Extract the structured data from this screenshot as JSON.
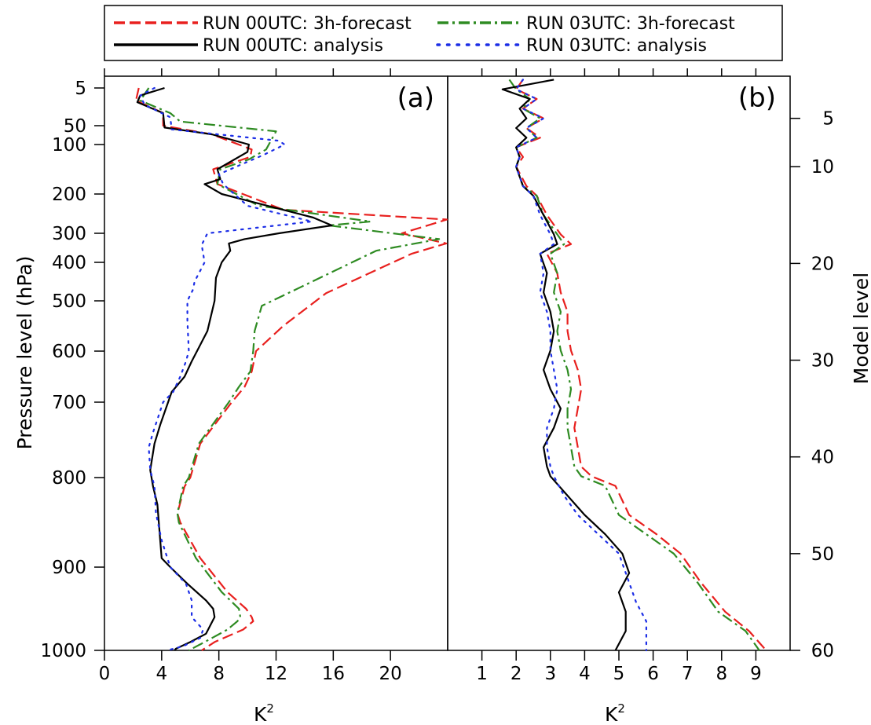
{
  "chart_data": [
    {
      "type": "line",
      "panel": "(a)",
      "xlabel": "K",
      "xlabel_superscript": "2",
      "ylabel": "Pressure level (hPa)",
      "xlim": [
        0,
        24
      ],
      "xticks": [
        0,
        4,
        8,
        12,
        16,
        20
      ],
      "yticks": [
        5,
        50,
        100,
        200,
        300,
        400,
        500,
        600,
        700,
        800,
        900,
        1000
      ],
      "y_axis": "pressure (hPa), increasing downward",
      "legend_position": "top, outside",
      "series": [
        {
          "name": "RUN 00UTC: 3h-forecast",
          "color": "#e8201e",
          "dash": "dashed",
          "x": [
            2.4,
            2.2,
            4.1,
            4.1,
            7.5,
            10.3,
            10.2,
            7.6,
            7.9,
            12.5,
            24.0,
            20.8,
            23.9,
            21.5,
            15.5,
            12.5,
            10.6,
            10.3,
            9.8,
            8.9,
            6.7,
            6.0,
            5.6,
            5.1,
            5.3,
            6.7,
            8.6,
            9.9,
            10.3,
            10.4,
            9.7,
            7.7,
            6.8
          ],
          "y": [
            5,
            20,
            35,
            50,
            73,
            110,
            125,
            150,
            180,
            240,
            265,
            300,
            335,
            370,
            480,
            550,
            600,
            640,
            670,
            700,
            755,
            800,
            810,
            840,
            850,
            890,
            930,
            950,
            960,
            965,
            975,
            990,
            1000
          ]
        },
        {
          "name": "RUN 03UTC: 3h-forecast",
          "color": "#2e8b22",
          "dash": "dashdot",
          "x": [
            3.1,
            2.5,
            4.6,
            5.3,
            12.0,
            11.3,
            10.1,
            8.1,
            7.9,
            10.8,
            18.6,
            15.7,
            23.4,
            19.0,
            11.0,
            10.5,
            10.4,
            10.2,
            9.4,
            8.7,
            6.6,
            5.9,
            5.5,
            5.1,
            5.2,
            6.4,
            8.2,
            9.4,
            9.5,
            9.3,
            8.6,
            7.0,
            5.9
          ],
          "y": [
            5,
            20,
            35,
            45,
            65,
            110,
            130,
            150,
            180,
            230,
            270,
            280,
            320,
            360,
            510,
            560,
            600,
            640,
            670,
            700,
            755,
            800,
            810,
            840,
            850,
            890,
            930,
            950,
            960,
            965,
            975,
            990,
            1000
          ]
        },
        {
          "name": "RUN 00UTC: analysis",
          "color": "#000000",
          "dash": "solid",
          "x": [
            4.2,
            2.5,
            2.3,
            4.1,
            4.2,
            7.5,
            10.1,
            10.0,
            7.9,
            8.1,
            7.0,
            8.2,
            14.6,
            15.9,
            12.2,
            9.8,
            8.7,
            8.8,
            8.2,
            7.8,
            7.7,
            7.2,
            6.1,
            5.6,
            4.7,
            3.9,
            3.5,
            3.2,
            3.4,
            3.7,
            3.9,
            4.0,
            4.6,
            5.8,
            7.1,
            7.6,
            7.7,
            7.1,
            6.0,
            5.0,
            4.9
          ],
          "y": [
            5,
            14,
            22,
            35,
            55,
            73,
            100,
            115,
            150,
            170,
            180,
            200,
            260,
            280,
            300,
            320,
            335,
            360,
            400,
            440,
            500,
            560,
            620,
            650,
            680,
            730,
            755,
            790,
            810,
            830,
            870,
            890,
            900,
            920,
            940,
            950,
            960,
            980,
            990,
            998,
            1000
          ]
        },
        {
          "name": "RUN 03UTC: analysis",
          "color": "#1c2ee6",
          "dash": "dotted",
          "x": [
            3.5,
            2.5,
            2.8,
            4.6,
            4.7,
            12.2,
            12.6,
            11.2,
            8.0,
            8.3,
            10.0,
            14.5,
            7.2,
            6.8,
            7.0,
            6.3,
            6.2,
            5.8,
            5.8,
            5.9,
            5.7,
            5.3,
            4.8,
            4.1,
            3.4,
            3.1,
            3.2,
            3.5,
            3.6,
            4.0,
            4.6,
            5.7,
            6.1,
            6.1,
            6.9,
            6.7,
            5.5,
            4.4
          ],
          "y": [
            5,
            14,
            25,
            40,
            60,
            90,
            100,
            120,
            160,
            180,
            230,
            270,
            300,
            340,
            400,
            450,
            470,
            500,
            540,
            600,
            620,
            650,
            680,
            700,
            740,
            760,
            790,
            810,
            840,
            870,
            900,
            920,
            940,
            960,
            975,
            985,
            995,
            1000
          ]
        }
      ]
    },
    {
      "type": "line",
      "panel": "(b)",
      "xlabel": "K",
      "xlabel_superscript": "2",
      "ylabel": "Model level",
      "xlim": [
        0,
        10
      ],
      "xticks": [
        1,
        2,
        3,
        4,
        5,
        6,
        7,
        8,
        9
      ],
      "yticks": [
        5,
        10,
        20,
        30,
        40,
        50,
        60
      ],
      "y_axis": "model level 1 at top to 60 at bottom, right-hand labels",
      "series": [
        {
          "name": "RUN 00UTC: 3h-forecast",
          "color": "#e8201e",
          "dash": "dashed",
          "x": [
            2.2,
            2.0,
            2.6,
            2.2,
            2.8,
            2.3,
            2.7,
            2.0,
            2.2,
            2.0,
            2.3,
            2.6,
            2.9,
            3.3,
            3.6,
            2.9,
            3.2,
            3.3,
            3.5,
            3.5,
            3.6,
            3.8,
            3.9,
            3.8,
            3.7,
            3.8,
            3.9,
            4.2,
            4.9,
            5.3,
            6.1,
            6.8,
            7.4,
            8.1,
            8.8,
            9.3
          ],
          "y": [
            1,
            2,
            3,
            4,
            5,
            6,
            7,
            8,
            9,
            10,
            12,
            13,
            15,
            17,
            18,
            19,
            21,
            23,
            25,
            27,
            29,
            31,
            33,
            35,
            37,
            39,
            41,
            42,
            43,
            46,
            48,
            50,
            53,
            56,
            58,
            60
          ]
        },
        {
          "name": "RUN 03UTC: 3h-forecast",
          "color": "#2e8b22",
          "dash": "dashdot",
          "x": [
            1.8,
            2.0,
            2.4,
            2.2,
            2.7,
            2.3,
            2.6,
            2.0,
            2.1,
            2.0,
            2.2,
            2.6,
            2.8,
            3.2,
            3.4,
            3.0,
            3.2,
            3.1,
            3.3,
            3.2,
            3.3,
            3.5,
            3.6,
            3.5,
            3.5,
            3.6,
            3.7,
            3.9,
            4.6,
            5.0,
            5.8,
            6.6,
            7.3,
            7.9,
            8.7,
            9.1
          ],
          "y": [
            1,
            2,
            3,
            4,
            5,
            6,
            7,
            8,
            9,
            10,
            12,
            13,
            15,
            17,
            18,
            19,
            21,
            23,
            25,
            27,
            29,
            31,
            33,
            35,
            37,
            39,
            41,
            42,
            43,
            46,
            48,
            50,
            53,
            56,
            58,
            60
          ]
        },
        {
          "name": "RUN 00UTC: analysis",
          "color": "#000000",
          "dash": "solid",
          "x": [
            3.1,
            1.6,
            2.4,
            2.1,
            2.3,
            2.0,
            2.3,
            2.0,
            2.1,
            2.0,
            2.2,
            2.5,
            2.8,
            3.1,
            3.2,
            2.7,
            2.9,
            2.8,
            3.0,
            3.1,
            3.0,
            2.8,
            3.0,
            3.3,
            3.1,
            2.8,
            2.9,
            3.0,
            3.5,
            4.0,
            4.6,
            5.1,
            5.3,
            5.0,
            5.2,
            5.2,
            4.9
          ],
          "y": [
            1,
            2,
            3,
            4,
            5,
            6,
            7,
            8,
            9,
            10,
            12,
            13,
            15,
            17,
            18,
            19,
            21,
            23,
            25,
            27,
            29,
            31,
            33,
            35,
            37,
            39,
            41,
            42,
            44,
            46,
            48,
            50,
            52,
            54,
            56,
            58,
            60
          ]
        },
        {
          "name": "RUN 03UTC: analysis",
          "color": "#1c2ee6",
          "dash": "dotted",
          "x": [
            2.2,
            2.0,
            2.6,
            2.2,
            2.8,
            2.3,
            2.6,
            2.0,
            2.1,
            2.0,
            2.2,
            2.5,
            2.7,
            3.0,
            3.1,
            2.7,
            2.8,
            2.7,
            2.9,
            3.0,
            3.0,
            3.1,
            3.2,
            3.1,
            2.9,
            2.9,
            3.0,
            3.1,
            3.4,
            3.8,
            4.4,
            5.0,
            5.3,
            5.5,
            5.8,
            5.8
          ],
          "y": [
            1,
            2,
            3,
            4,
            5,
            6,
            7,
            8,
            9,
            10,
            12,
            13,
            15,
            17,
            18,
            19,
            21,
            23,
            25,
            27,
            29,
            31,
            33,
            35,
            37,
            39,
            41,
            42,
            44,
            46,
            48,
            50,
            53,
            55,
            57,
            60
          ]
        }
      ]
    }
  ]
}
